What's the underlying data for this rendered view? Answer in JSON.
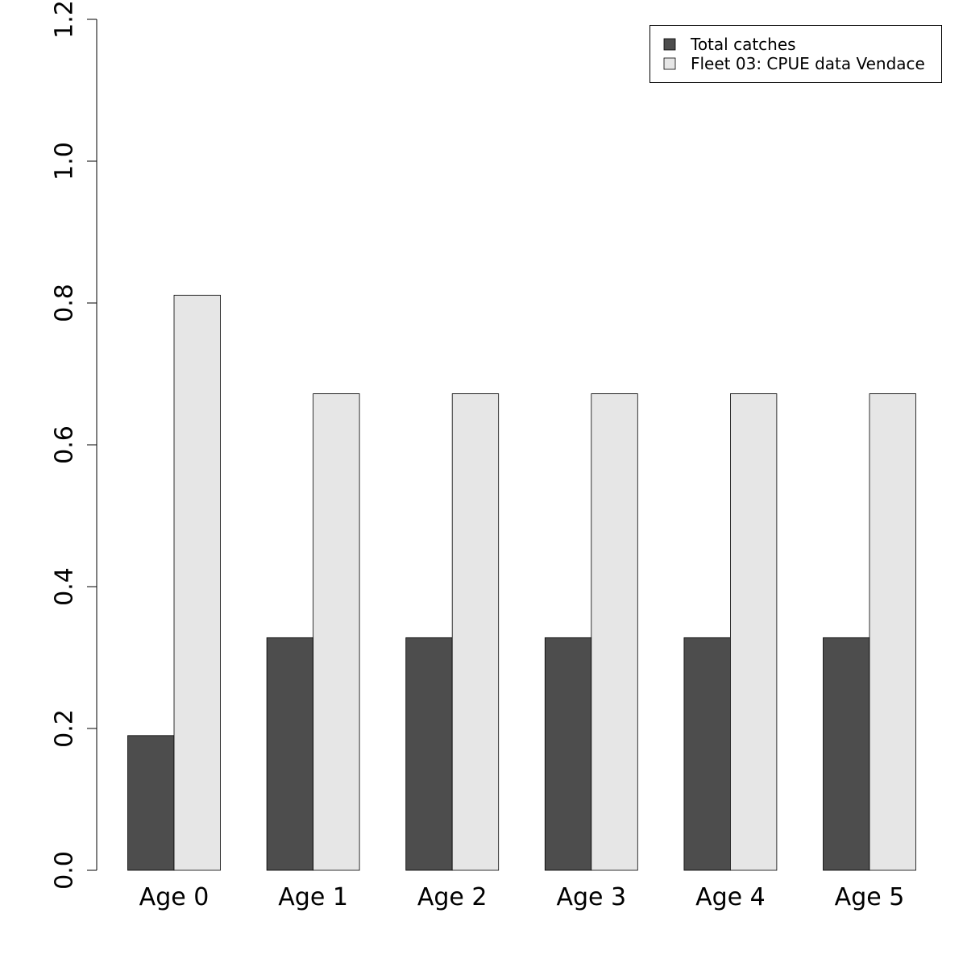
{
  "chart_data": {
    "type": "bar",
    "categories": [
      "Age 0",
      "Age 1",
      "Age 2",
      "Age 3",
      "Age 4",
      "Age 5"
    ],
    "series": [
      {
        "name": "Total catches",
        "color": "#4d4d4d",
        "values": [
          0.19,
          0.328,
          0.328,
          0.328,
          0.328,
          0.328
        ]
      },
      {
        "name": "Fleet 03:  CPUE data Vendace",
        "color": "#e6e6e6",
        "values": [
          0.811,
          0.672,
          0.672,
          0.672,
          0.672,
          0.672
        ]
      }
    ],
    "yticks": [
      "0.0",
      "0.2",
      "0.4",
      "0.6",
      "0.8",
      "1.0",
      "1.2"
    ],
    "ylim": [
      0,
      1.2
    ],
    "legend_position": "top-right",
    "grid": false
  }
}
